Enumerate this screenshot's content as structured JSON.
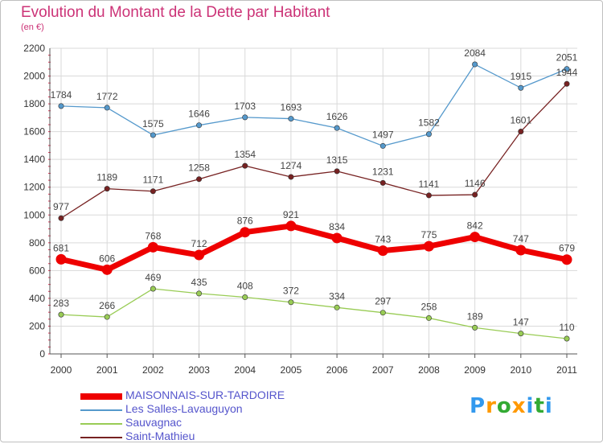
{
  "chart_data": {
    "type": "line",
    "title": "Evolution du Montant de la Dette par Habitant",
    "subtitle": "(en €)",
    "x": [
      "2000",
      "2001",
      "2002",
      "2003",
      "2004",
      "2005",
      "2006",
      "2007",
      "2008",
      "2009",
      "2010",
      "2011"
    ],
    "ylim": [
      0,
      2200
    ],
    "yticks": [
      0,
      200,
      400,
      600,
      800,
      1000,
      1200,
      1400,
      1600,
      1800,
      2000,
      2200
    ],
    "grid": true,
    "legend_position": "bottom-left",
    "series": [
      {
        "name": "MAISONNAIS-SUR-TARDOIRE",
        "color": "#ee0000",
        "values": [
          681,
          606,
          768,
          712,
          876,
          921,
          834,
          743,
          775,
          842,
          747,
          679
        ]
      },
      {
        "name": "Les Salles-Lavauguyon",
        "color": "#5599cc",
        "values": [
          1784,
          1772,
          1575,
          1646,
          1703,
          1693,
          1626,
          1497,
          1582,
          2084,
          1915,
          2051
        ]
      },
      {
        "name": "Sauvagnac",
        "color": "#99cc55",
        "values": [
          283,
          266,
          469,
          435,
          408,
          372,
          334,
          297,
          258,
          189,
          147,
          110
        ]
      },
      {
        "name": "Saint-Mathieu",
        "color": "#772222",
        "values": [
          977,
          1189,
          1171,
          1258,
          1354,
          1274,
          1315,
          1231,
          1141,
          1146,
          1601,
          1944
        ]
      }
    ]
  },
  "logo": {
    "letters": [
      "P",
      "r",
      "o",
      "x",
      "i",
      "t",
      "i"
    ],
    "colors": [
      "#3399ee",
      "#ff9900",
      "#33aa33",
      "#ff9900",
      "#3399ee",
      "#33aa33",
      "#3399ee"
    ]
  }
}
